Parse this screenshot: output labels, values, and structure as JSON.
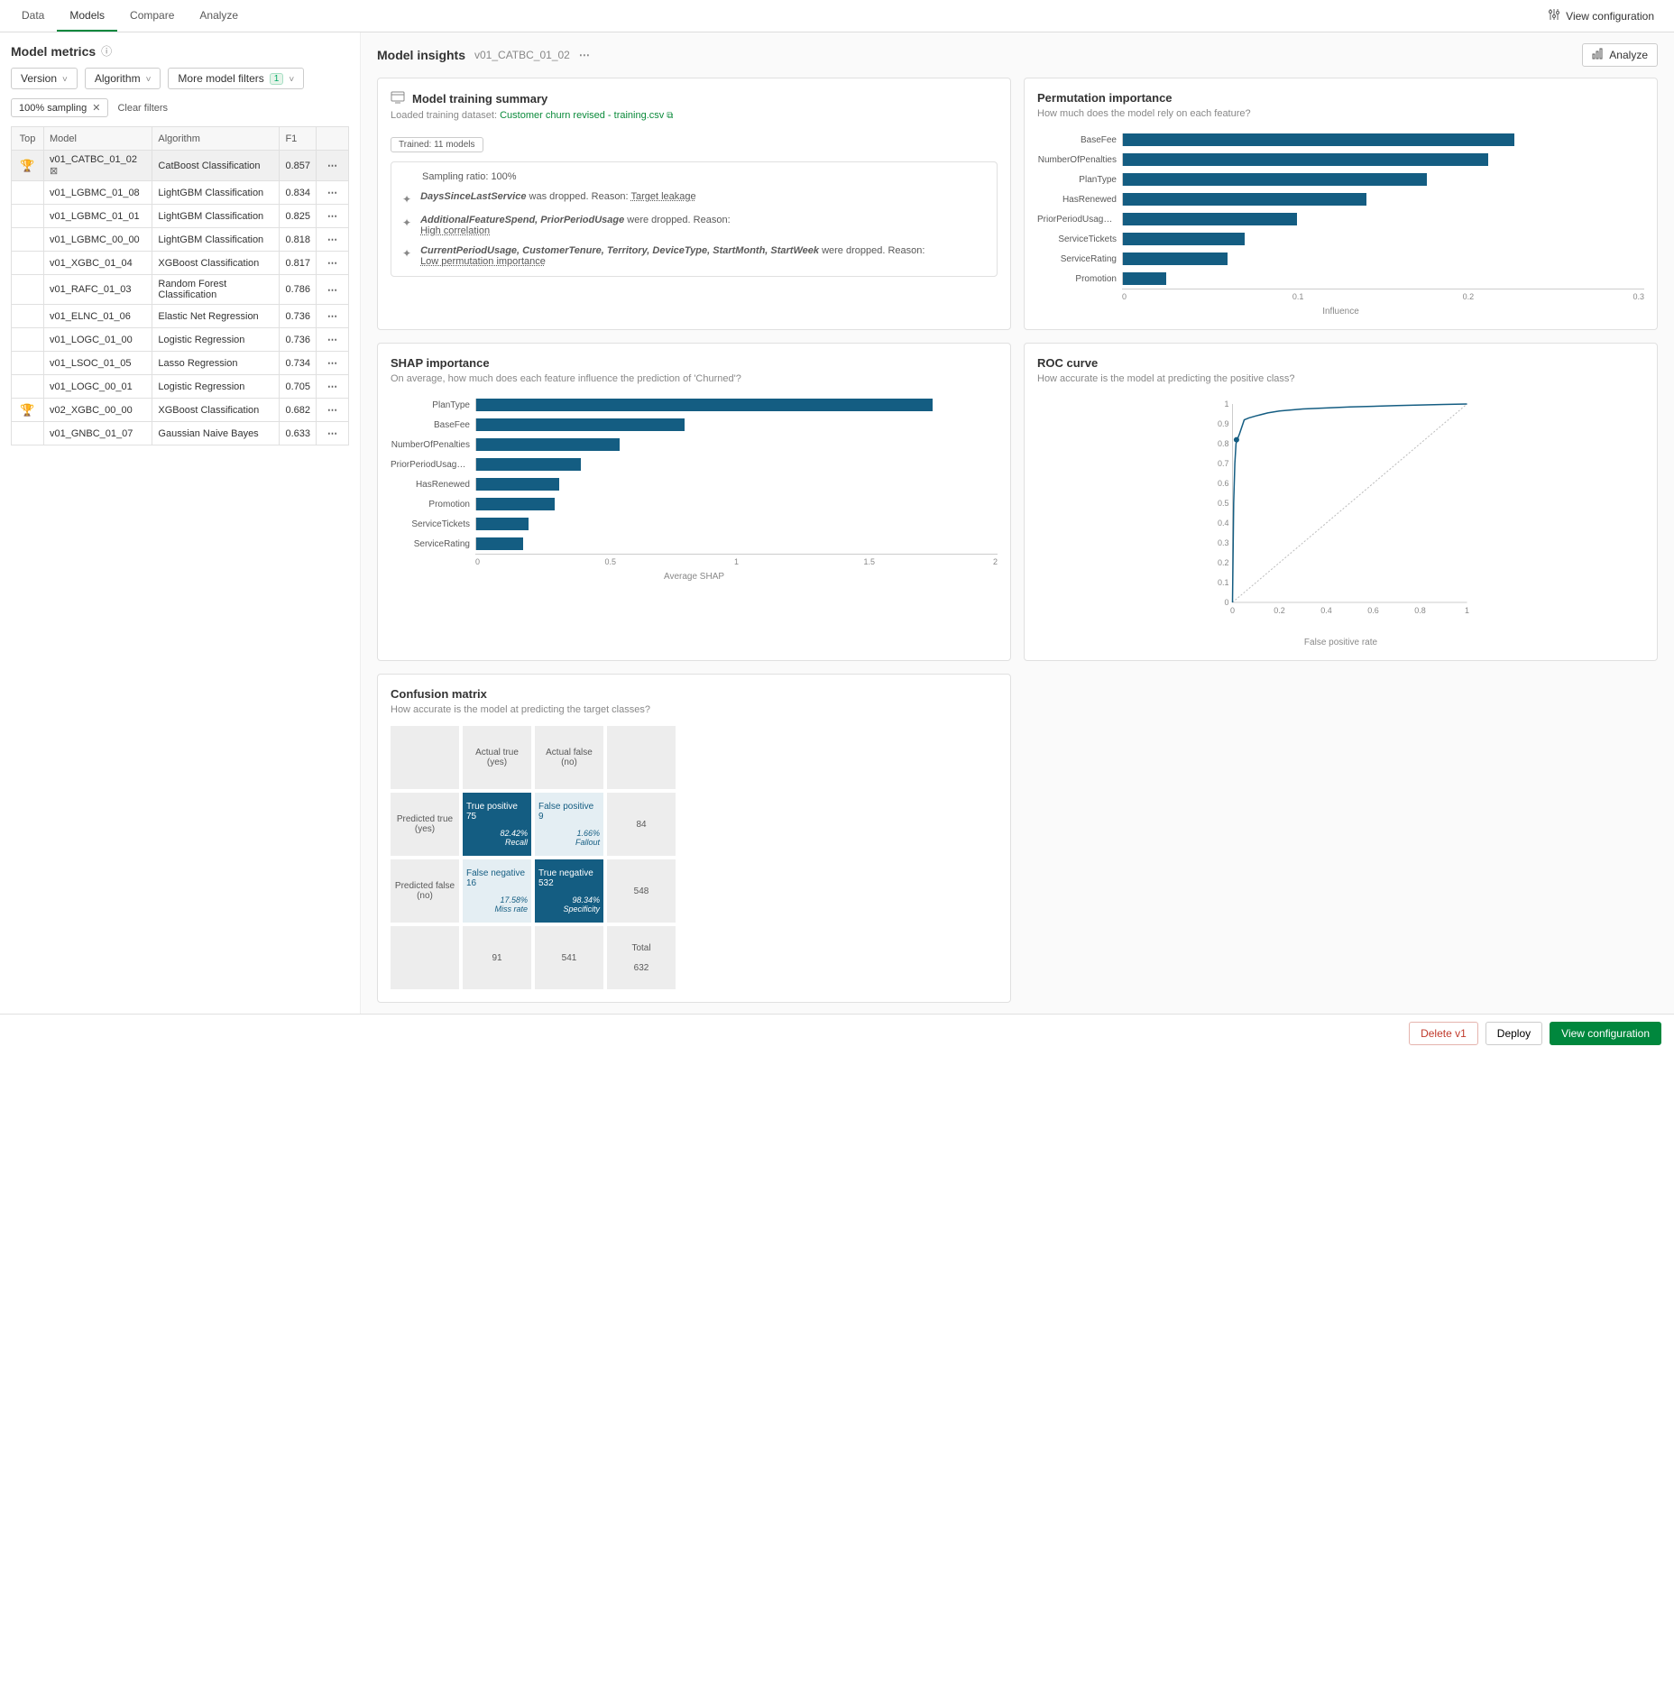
{
  "tabs": {
    "data": "Data",
    "models": "Models",
    "compare": "Compare",
    "analyze": "Analyze",
    "view_config": "View configuration"
  },
  "left": {
    "title": "Model metrics",
    "filters": {
      "version": "Version",
      "algorithm": "Algorithm",
      "more": "More model filters",
      "more_count": "1"
    },
    "chip": "100% sampling",
    "clear": "Clear filters",
    "cols": {
      "top": "Top",
      "model": "Model",
      "algorithm": "Algorithm",
      "f1": "F1"
    },
    "rows": [
      {
        "trophy": true,
        "selected": true,
        "pin": true,
        "model": "v01_CATBC_01_02",
        "alg": "CatBoost Classification",
        "f1": "0.857"
      },
      {
        "model": "v01_LGBMC_01_08",
        "alg": "LightGBM Classification",
        "f1": "0.834"
      },
      {
        "model": "v01_LGBMC_01_01",
        "alg": "LightGBM Classification",
        "f1": "0.825"
      },
      {
        "model": "v01_LGBMC_00_00",
        "alg": "LightGBM Classification",
        "f1": "0.818"
      },
      {
        "model": "v01_XGBC_01_04",
        "alg": "XGBoost Classification",
        "f1": "0.817"
      },
      {
        "model": "v01_RAFC_01_03",
        "alg": "Random Forest Classification",
        "f1": "0.786"
      },
      {
        "model": "v01_ELNC_01_06",
        "alg": "Elastic Net Regression",
        "f1": "0.736"
      },
      {
        "model": "v01_LOGC_01_00",
        "alg": "Logistic Regression",
        "f1": "0.736"
      },
      {
        "model": "v01_LSOC_01_05",
        "alg": "Lasso Regression",
        "f1": "0.734"
      },
      {
        "model": "v01_LOGC_00_01",
        "alg": "Logistic Regression",
        "f1": "0.705"
      },
      {
        "trophy": true,
        "model": "v02_XGBC_00_00",
        "alg": "XGBoost Classification",
        "f1": "0.682"
      },
      {
        "model": "v01_GNBC_01_07",
        "alg": "Gaussian Naive Bayes",
        "f1": "0.633"
      }
    ]
  },
  "insights": {
    "title": "Model insights",
    "model_id": "v01_CATBC_01_02",
    "analyze": "Analyze"
  },
  "training": {
    "title": "Model training summary",
    "loaded_label": "Loaded training dataset:",
    "dataset": "Customer churn revised - training.csv",
    "pill": "Trained: 11 models",
    "sampling_label": "Sampling ratio:",
    "sampling_val": "100%",
    "drop1_feat": "DaysSinceLastService",
    "drop1_text": " was dropped. Reason: ",
    "drop1_reason": "Target leakage",
    "drop2_feat": "AdditionalFeatureSpend, PriorPeriodUsage",
    "drop2_text": " were dropped. Reason:",
    "drop2_reason": "High correlation",
    "drop3_feat": "CurrentPeriodUsage, CustomerTenure, Territory, DeviceType, StartMonth, StartWeek",
    "drop3_text": " were dropped. Reason:",
    "drop3_reason": "Low permutation importance"
  },
  "perm": {
    "title": "Permutation importance",
    "subtitle": "How much does the model rely on each feature?",
    "axis_label": "Influence",
    "max": 0.3,
    "ticks": [
      "0",
      "0.1",
      "0.2",
      "0.3"
    ],
    "bars": [
      {
        "label": "BaseFee",
        "val": 0.225
      },
      {
        "label": "NumberOfPenalties",
        "val": 0.21
      },
      {
        "label": "PlanType",
        "val": 0.175
      },
      {
        "label": "HasRenewed",
        "val": 0.14
      },
      {
        "label": "PriorPeriodUsage-Rou...",
        "val": 0.1
      },
      {
        "label": "ServiceTickets",
        "val": 0.07
      },
      {
        "label": "ServiceRating",
        "val": 0.06
      },
      {
        "label": "Promotion",
        "val": 0.025
      }
    ],
    "bar_color": "#145d82"
  },
  "shap": {
    "title": "SHAP importance",
    "subtitle": "On average, how much does each feature influence the prediction of 'Churned'?",
    "axis_label": "Average SHAP",
    "max": 2,
    "ticks": [
      "0",
      "0.5",
      "1",
      "1.5",
      "2"
    ],
    "bars": [
      {
        "label": "PlanType",
        "val": 1.75
      },
      {
        "label": "BaseFee",
        "val": 0.8
      },
      {
        "label": "NumberOfPenalties",
        "val": 0.55
      },
      {
        "label": "PriorPeriodUsage-Rou...",
        "val": 0.4
      },
      {
        "label": "HasRenewed",
        "val": 0.32
      },
      {
        "label": "Promotion",
        "val": 0.3
      },
      {
        "label": "ServiceTickets",
        "val": 0.2
      },
      {
        "label": "ServiceRating",
        "val": 0.18
      }
    ],
    "bar_color": "#145d82"
  },
  "roc": {
    "title": "ROC curve",
    "subtitle": "How accurate is the model at predicting the positive class?",
    "x_label": "False positive rate",
    "y_ticks": [
      "0",
      "0.1",
      "0.2",
      "0.3",
      "0.4",
      "0.5",
      "0.6",
      "0.7",
      "0.8",
      "0.9",
      "1"
    ],
    "x_ticks": [
      "0",
      "0.2",
      "0.4",
      "0.6",
      "0.8",
      "1"
    ],
    "curve_color": "#145d82",
    "points": [
      [
        0,
        0
      ],
      [
        0.005,
        0.5
      ],
      [
        0.01,
        0.7
      ],
      [
        0.015,
        0.8
      ],
      [
        0.02,
        0.82
      ],
      [
        0.03,
        0.85
      ],
      [
        0.05,
        0.92
      ],
      [
        0.07,
        0.93
      ],
      [
        0.1,
        0.94
      ],
      [
        0.15,
        0.955
      ],
      [
        0.2,
        0.965
      ],
      [
        0.3,
        0.975
      ],
      [
        0.5,
        0.985
      ],
      [
        0.7,
        0.992
      ],
      [
        0.9,
        0.998
      ],
      [
        1,
        1
      ]
    ],
    "marker": [
      0.017,
      0.82
    ]
  },
  "cm": {
    "title": "Confusion matrix",
    "subtitle": "How accurate is the model at predicting the target classes?",
    "actual_true": "Actual true (yes)",
    "actual_false": "Actual false (no)",
    "pred_true": "Predicted true (yes)",
    "pred_false": "Predicted false (no)",
    "tp_label": "True positive",
    "tp_val": "75",
    "tp_pct": "82.42%",
    "tp_metric": "Recall",
    "fp_label": "False positive",
    "fp_val": "9",
    "fp_pct": "1.66%",
    "fp_metric": "Fallout",
    "fn_label": "False negative",
    "fn_val": "16",
    "fn_pct": "17.58%",
    "fn_metric": "Miss rate",
    "tn_label": "True negative",
    "tn_val": "532",
    "tn_pct": "98.34%",
    "tn_metric": "Specificity",
    "row_true_total": "84",
    "row_false_total": "548",
    "col_true_total": "91",
    "col_false_total": "541",
    "total_label": "Total",
    "total_val": "632"
  },
  "footer": {
    "delete": "Delete v1",
    "deploy": "Deploy",
    "view_config": "View configuration"
  }
}
